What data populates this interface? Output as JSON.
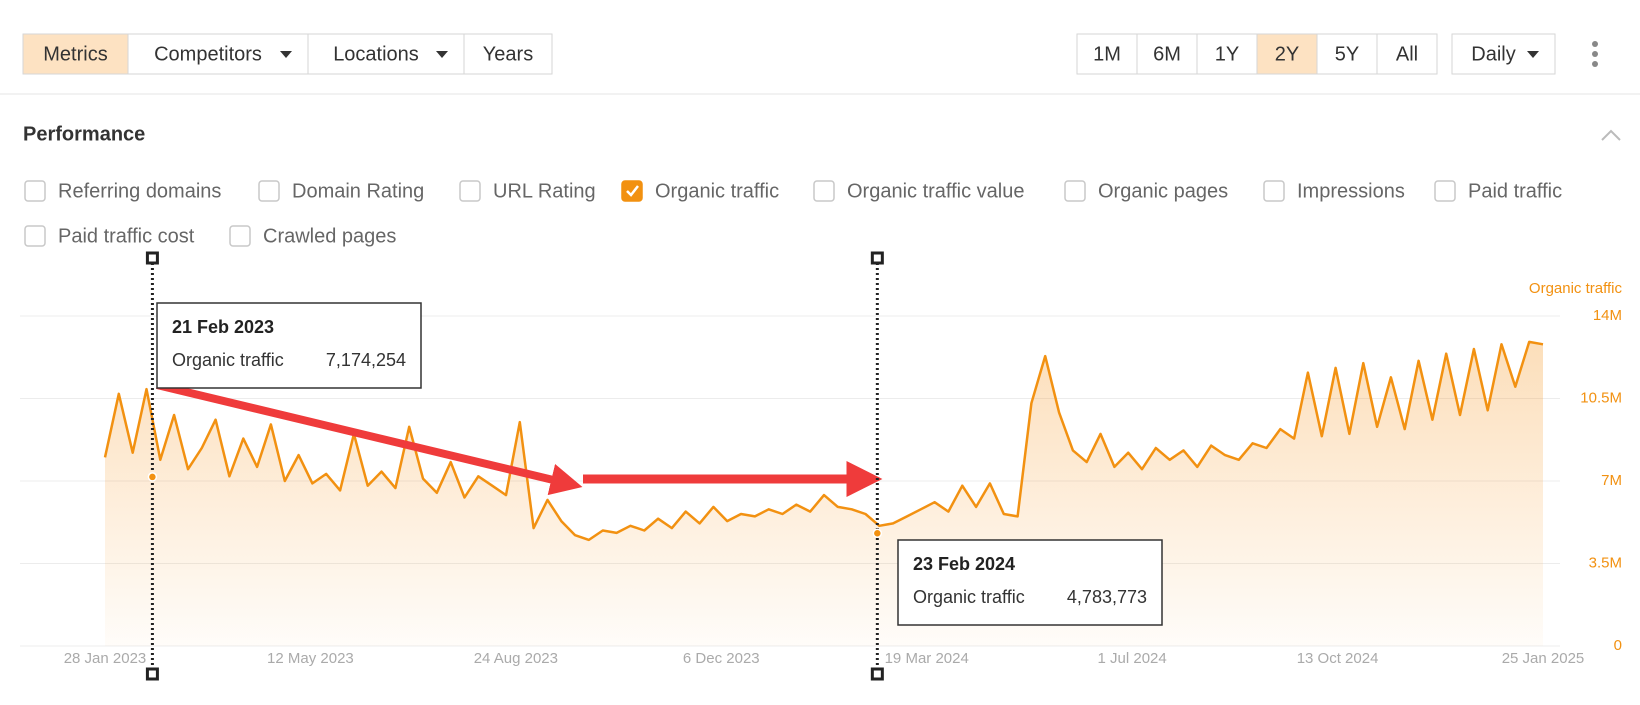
{
  "toolbar": {
    "left": [
      {
        "label": "Metrics",
        "active": true
      },
      {
        "label": "Competitors",
        "dropdown": true
      },
      {
        "label": "Locations",
        "dropdown": true
      },
      {
        "label": "Years"
      }
    ],
    "ranges": [
      {
        "label": "1M"
      },
      {
        "label": "6M"
      },
      {
        "label": "1Y"
      },
      {
        "label": "2Y",
        "active": true
      },
      {
        "label": "5Y"
      },
      {
        "label": "All"
      }
    ],
    "interval": {
      "label": "Daily",
      "dropdown": true
    }
  },
  "section": {
    "title": "Performance"
  },
  "metrics": [
    {
      "label": "Referring domains",
      "checked": false
    },
    {
      "label": "Domain Rating",
      "checked": false
    },
    {
      "label": "URL Rating",
      "checked": false
    },
    {
      "label": "Organic traffic",
      "checked": true
    },
    {
      "label": "Organic traffic value",
      "checked": false
    },
    {
      "label": "Organic pages",
      "checked": false
    },
    {
      "label": "Impressions",
      "checked": false
    },
    {
      "label": "Paid traffic",
      "checked": false
    },
    {
      "label": "Paid traffic cost",
      "checked": false
    },
    {
      "label": "Crawled pages",
      "checked": false
    }
  ],
  "chart_data": {
    "type": "line",
    "x": [
      "2023-01-28",
      "2023-02-04",
      "2023-02-11",
      "2023-02-18",
      "2023-02-25",
      "2023-03-04",
      "2023-03-11",
      "2023-03-18",
      "2023-03-25",
      "2023-04-01",
      "2023-04-08",
      "2023-04-15",
      "2023-04-22",
      "2023-04-29",
      "2023-05-06",
      "2023-05-13",
      "2023-05-20",
      "2023-05-27",
      "2023-06-03",
      "2023-06-10",
      "2023-06-17",
      "2023-06-24",
      "2023-07-01",
      "2023-07-08",
      "2023-07-15",
      "2023-07-22",
      "2023-07-29",
      "2023-08-05",
      "2023-08-12",
      "2023-08-19",
      "2023-08-26",
      "2023-09-02",
      "2023-09-09",
      "2023-09-16",
      "2023-09-23",
      "2023-09-30",
      "2023-10-07",
      "2023-10-14",
      "2023-10-21",
      "2023-10-28",
      "2023-11-04",
      "2023-11-11",
      "2023-11-18",
      "2023-11-25",
      "2023-12-02",
      "2023-12-09",
      "2023-12-16",
      "2023-12-23",
      "2023-12-30",
      "2024-01-06",
      "2024-01-13",
      "2024-01-20",
      "2024-01-27",
      "2024-02-03",
      "2024-02-10",
      "2024-02-17",
      "2024-02-24",
      "2024-03-02",
      "2024-03-09",
      "2024-03-16",
      "2024-03-23",
      "2024-03-30",
      "2024-04-06",
      "2024-04-13",
      "2024-04-20",
      "2024-04-27",
      "2024-05-04",
      "2024-05-11",
      "2024-05-18",
      "2024-05-25",
      "2024-06-01",
      "2024-06-08",
      "2024-06-15",
      "2024-06-22",
      "2024-06-29",
      "2024-07-06",
      "2024-07-13",
      "2024-07-20",
      "2024-07-27",
      "2024-08-03",
      "2024-08-10",
      "2024-08-17",
      "2024-08-24",
      "2024-08-31",
      "2024-09-07",
      "2024-09-14",
      "2024-09-21",
      "2024-09-28",
      "2024-10-05",
      "2024-10-12",
      "2024-10-19",
      "2024-10-26",
      "2024-11-02",
      "2024-11-09",
      "2024-11-16",
      "2024-11-23",
      "2024-11-30",
      "2024-12-07",
      "2024-12-14",
      "2024-12-21",
      "2024-12-28",
      "2025-01-04",
      "2025-01-11",
      "2025-01-18",
      "2025-01-25"
    ],
    "series": [
      {
        "name": "Organic traffic",
        "color": "#f29111",
        "values": [
          8000000,
          10700000,
          8200000,
          10900000,
          7900000,
          9800000,
          7500000,
          8400000,
          9600000,
          7200000,
          8800000,
          7600000,
          9400000,
          7000000,
          8100000,
          6900000,
          7300000,
          6600000,
          9000000,
          6800000,
          7400000,
          6700000,
          9300000,
          7100000,
          6500000,
          7800000,
          6300000,
          7200000,
          6800000,
          6400000,
          9500000,
          5000000,
          6200000,
          5300000,
          4700000,
          4500000,
          4900000,
          4800000,
          5100000,
          4900000,
          5400000,
          5000000,
          5700000,
          5200000,
          5900000,
          5300000,
          5600000,
          5500000,
          5800000,
          5600000,
          6000000,
          5700000,
          6400000,
          5900000,
          5800000,
          5600000,
          5100000,
          5200000,
          5500000,
          5800000,
          6100000,
          5700000,
          6800000,
          5900000,
          6900000,
          5600000,
          5500000,
          10300000,
          12300000,
          9900000,
          8300000,
          7800000,
          9000000,
          7600000,
          8200000,
          7500000,
          8400000,
          7900000,
          8300000,
          7600000,
          8500000,
          8100000,
          7900000,
          8600000,
          8400000,
          9200000,
          8800000,
          11600000,
          8900000,
          11800000,
          9000000,
          12000000,
          9300000,
          11400000,
          9200000,
          12100000,
          9600000,
          12400000,
          9800000,
          12600000,
          10000000,
          12800000,
          11000000,
          12900000,
          12800000
        ]
      }
    ],
    "xlim": [
      "2023-01-28",
      "2025-01-25"
    ],
    "xticks": [
      {
        "value": "2023-01-28",
        "label": "28 Jan 2023"
      },
      {
        "value": "2023-05-12",
        "label": "12 May 2023"
      },
      {
        "value": "2023-08-24",
        "label": "24 Aug 2023"
      },
      {
        "value": "2023-12-06",
        "label": "6 Dec 2023"
      },
      {
        "value": "2024-03-19",
        "label": "19 Mar 2024"
      },
      {
        "value": "2024-07-01",
        "label": "1 Jul 2024"
      },
      {
        "value": "2024-10-13",
        "label": "13 Oct 2024"
      },
      {
        "value": "2025-01-25",
        "label": "25 Jan 2025"
      }
    ],
    "ylim": [
      0,
      14000000
    ],
    "yticks": [
      0,
      {
        "value": 3500000,
        "label": "3.5M"
      },
      {
        "value": 7000000,
        "label": "7M"
      },
      {
        "value": 10500000,
        "label": "10.5M"
      },
      {
        "value": 14000000,
        "label": "14M"
      }
    ],
    "grid": true,
    "annotations": [
      {
        "x": "2023-02-21",
        "label": "21 Feb 2023",
        "series": "Organic traffic",
        "value": 7174254,
        "value_label": "7,174,254"
      },
      {
        "x": "2024-02-23",
        "label": "23 Feb 2024",
        "series": "Organic traffic",
        "value": 4783773,
        "value_label": "4,783,773"
      }
    ]
  }
}
